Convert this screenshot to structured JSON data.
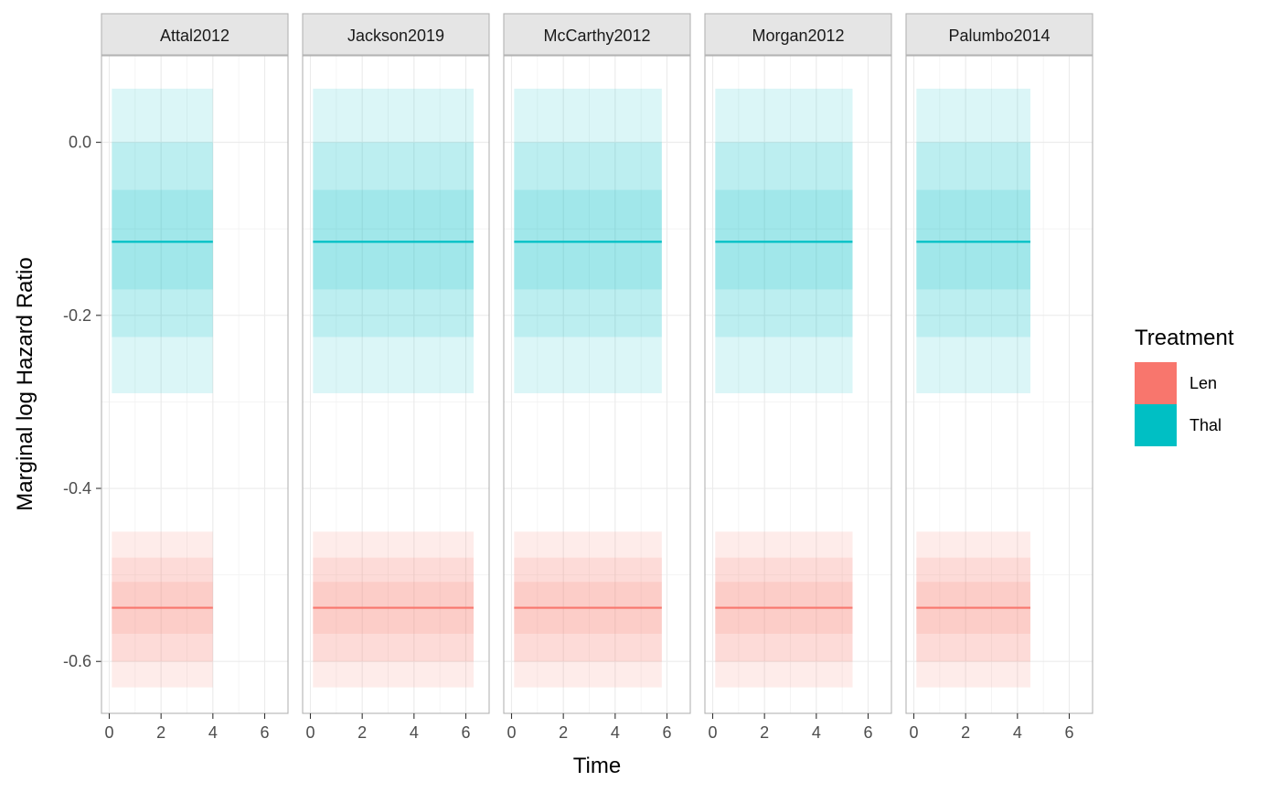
{
  "chart_data": {
    "type": "line",
    "facets": [
      "Attal2012",
      "Jackson2019",
      "McCarthy2012",
      "Morgan2012",
      "Palumbo2014"
    ],
    "xlabel": "Time",
    "ylabel": "Marginal log Hazard Ratio",
    "xlim": [
      -0.3,
      6.9
    ],
    "ylim": [
      -0.66,
      0.1
    ],
    "x_ticks": [
      0,
      2,
      4,
      6
    ],
    "x_minor_ticks": [
      1,
      3,
      5
    ],
    "y_ticks": [
      0.0,
      -0.2,
      -0.4,
      -0.6
    ],
    "y_tick_labels": [
      "0.0",
      "-0.2",
      "-0.4",
      "-0.6"
    ],
    "y_minor_ticks": [
      0.1,
      -0.1,
      -0.3,
      -0.5
    ],
    "grid": true,
    "legend": {
      "title": "Treatment",
      "position": "right",
      "entries": [
        "Len",
        "Thal"
      ]
    },
    "colors": {
      "Len": "#F8766D",
      "Thal": "#00BFC4"
    },
    "series": [
      {
        "name": "Thal",
        "median": -0.115,
        "bands": [
          [
            -0.29,
            0.062
          ],
          [
            -0.225,
            0.0
          ],
          [
            -0.17,
            -0.055
          ]
        ]
      },
      {
        "name": "Len",
        "median": -0.538,
        "bands": [
          [
            -0.63,
            -0.45
          ],
          [
            -0.6,
            -0.48
          ],
          [
            -0.568,
            -0.508
          ]
        ]
      }
    ],
    "x_start": 0.1,
    "x_end_by_facet": {
      "Attal2012": 4.0,
      "Jackson2019": 6.3,
      "McCarthy2012": 5.8,
      "Morgan2012": 5.4,
      "Palumbo2014": 4.5
    }
  }
}
